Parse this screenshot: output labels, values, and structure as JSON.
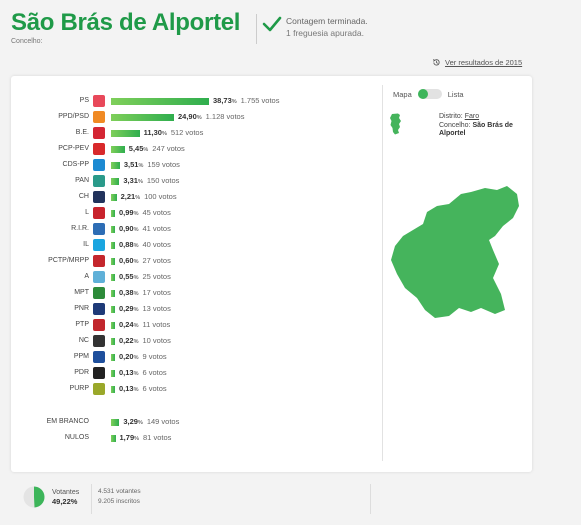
{
  "header": {
    "title": "São Brás de Alportel",
    "subtitle": "Concelho:",
    "status_line1": "Contagem terminada.",
    "status_line2": "1 freguesia apurada.",
    "previous_results": "Ver resultados de 2015"
  },
  "parties": [
    {
      "name": "PS",
      "pct": "38,73",
      "votes": "1.755 votos",
      "share": 38.73,
      "color": "#e8485a",
      "icon": "ps-logo-icon"
    },
    {
      "name": "PPD/PSD",
      "pct": "24,90",
      "votes": "1.128 votos",
      "share": 24.9,
      "color": "#f08a24",
      "icon": "psd-logo-icon"
    },
    {
      "name": "B.E.",
      "pct": "11,30",
      "votes": "512 votos",
      "share": 11.3,
      "color": "#d42634",
      "icon": "be-logo-icon"
    },
    {
      "name": "PCP-PEV",
      "pct": "5,45",
      "votes": "247 votos",
      "share": 5.45,
      "color": "#d8292b",
      "icon": "pcp-pev-logo-icon"
    },
    {
      "name": "CDS-PP",
      "pct": "3,51",
      "votes": "159 votos",
      "share": 3.51,
      "color": "#1c8ad2",
      "icon": "cds-pp-logo-icon"
    },
    {
      "name": "PAN",
      "pct": "3,31",
      "votes": "150 votos",
      "share": 3.31,
      "color": "#2a9a8a",
      "icon": "pan-logo-icon"
    },
    {
      "name": "CH",
      "pct": "2,21",
      "votes": "100 votos",
      "share": 2.21,
      "color": "#22335c",
      "icon": "ch-logo-icon"
    },
    {
      "name": "L",
      "pct": "0,99",
      "votes": "45 votos",
      "share": 0.99,
      "color": "#c8232c",
      "icon": "livre-logo-icon"
    },
    {
      "name": "R.I.R.",
      "pct": "0,90",
      "votes": "41 votos",
      "share": 0.9,
      "color": "#2d6db5",
      "icon": "rir-logo-icon"
    },
    {
      "name": "IL",
      "pct": "0,88",
      "votes": "40 votos",
      "share": 0.88,
      "color": "#1aa5e0",
      "icon": "il-logo-icon"
    },
    {
      "name": "PCTP/MRPP",
      "pct": "0,60",
      "votes": "27 votos",
      "share": 0.6,
      "color": "#c4262c",
      "icon": "pctp-mrpp-logo-icon"
    },
    {
      "name": "A",
      "pct": "0,55",
      "votes": "25 votos",
      "share": 0.55,
      "color": "#5fb0d8",
      "icon": "alianca-logo-icon"
    },
    {
      "name": "MPT",
      "pct": "0,38",
      "votes": "17 votos",
      "share": 0.38,
      "color": "#2d8b3a",
      "icon": "mpt-logo-icon"
    },
    {
      "name": "PNR",
      "pct": "0,29",
      "votes": "13 votos",
      "share": 0.29,
      "color": "#1e3a78",
      "icon": "pnr-logo-icon"
    },
    {
      "name": "PTP",
      "pct": "0,24",
      "votes": "11 votos",
      "share": 0.24,
      "color": "#c1272d",
      "icon": "ptp-logo-icon"
    },
    {
      "name": "NC",
      "pct": "0,22",
      "votes": "10 votos",
      "share": 0.22,
      "color": "#333333",
      "icon": "nc-logo-icon"
    },
    {
      "name": "PPM",
      "pct": "0,20",
      "votes": "9 votos",
      "share": 0.2,
      "color": "#1e4f9c",
      "icon": "ppm-logo-icon"
    },
    {
      "name": "PDR",
      "pct": "0,13",
      "votes": "6 votos",
      "share": 0.13,
      "color": "#222222",
      "icon": "pdr-logo-icon"
    },
    {
      "name": "PURP",
      "pct": "0,13",
      "votes": "6 votos",
      "share": 0.13,
      "color": "#9aa82a",
      "icon": "purp-logo-icon"
    }
  ],
  "others": [
    {
      "name": "EM BRANCO",
      "pct": "3,29",
      "votes": "149 votos",
      "share": 3.29
    },
    {
      "name": "NULOS",
      "pct": "1,79",
      "votes": "81 votos",
      "share": 1.79
    }
  ],
  "pct_symbol": "%",
  "view_toggle": {
    "map_label": "Mapa",
    "list_label": "Lista",
    "selected": "Mapa"
  },
  "location": {
    "district_label": "Distrito:",
    "district_value": "Faro",
    "council_label": "Concelho:",
    "council_value": "São Brás de Alportel"
  },
  "footer": {
    "voters_label": "Votantes",
    "voters_pct": "49,22",
    "voters_share": 49.22,
    "voters_count": "4.531 votantes",
    "registered": "9.205 inscritos"
  },
  "colors": {
    "accent": "#1f9a48",
    "bar_start": "#7fcf5a",
    "bar_end": "#2fae4e",
    "map_fill": "#45b45c"
  }
}
